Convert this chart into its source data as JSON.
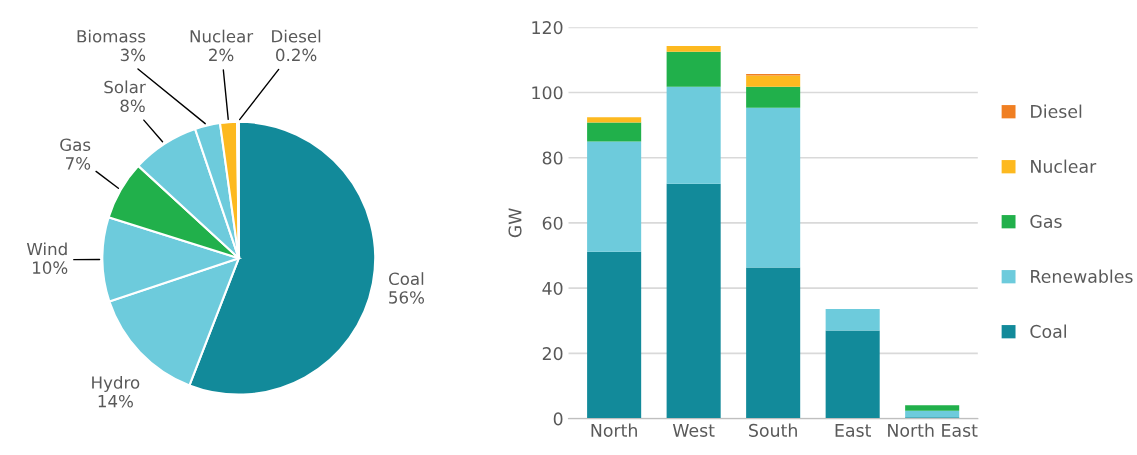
{
  "chart_data": [
    {
      "type": "pie",
      "categories": [
        "Coal",
        "Hydro",
        "Wind",
        "Gas",
        "Solar",
        "Biomass",
        "Nuclear",
        "Diesel"
      ],
      "values": [
        56,
        14,
        10,
        7,
        8,
        3,
        2,
        0.2
      ],
      "value_labels": [
        "56%",
        "14%",
        "10%",
        "7%",
        "8%",
        "3%",
        "2%",
        "0.2%"
      ],
      "colors": [
        "#128a9a",
        "#6dcbdc",
        "#6dcbdc",
        "#21b04b",
        "#6dcbdc",
        "#6dcbdc",
        "#fdb91f",
        "#f07f22"
      ],
      "legend": false
    },
    {
      "type": "bar",
      "stacked": true,
      "ylabel": "GW",
      "categories": [
        "North",
        "West",
        "South",
        "East",
        "North East"
      ],
      "series": [
        {
          "name": "Coal",
          "color": "#128a9a",
          "values": [
            51.2,
            72.0,
            46.3,
            27.0,
            0.4
          ]
        },
        {
          "name": "Renewables",
          "color": "#6dcbdc",
          "values": [
            33.8,
            29.8,
            49.0,
            6.6,
            2.0
          ]
        },
        {
          "name": "Gas",
          "color": "#21b04b",
          "values": [
            5.8,
            10.7,
            6.5,
            null,
            1.7
          ]
        },
        {
          "name": "Nuclear",
          "color": "#fdb91f",
          "values": [
            1.6,
            1.8,
            3.4,
            0,
            0
          ]
        },
        {
          "name": "Diesel",
          "color": "#f07f22",
          "values": [
            0,
            0,
            0.5,
            0,
            0
          ]
        }
      ],
      "ylim": [
        0,
        120
      ],
      "yticks": [
        0,
        20,
        40,
        60,
        80,
        100,
        120
      ],
      "grid": "y",
      "legend": "right"
    }
  ]
}
